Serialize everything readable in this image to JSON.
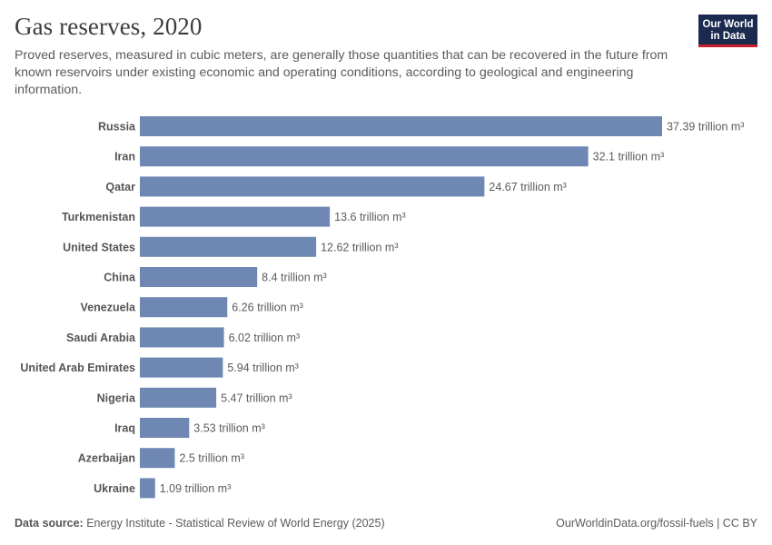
{
  "header": {
    "title": "Gas reserves, 2020",
    "subtitle": "Proved reserves, measured in cubic meters, are generally those quantities that can be recovered in the future from known reservoirs under existing economic and operating conditions, according to geological and engineering information.",
    "logo_line1": "Our World",
    "logo_line2": "in Data"
  },
  "colors": {
    "bar": "#6f88b3",
    "logo_bg": "#1b2a4f",
    "logo_accent": "#c81d2a"
  },
  "chart_data": {
    "type": "bar",
    "orientation": "horizontal",
    "title": "Gas reserves, 2020",
    "unit": "trillion m³",
    "categories": [
      "Russia",
      "Iran",
      "Qatar",
      "Turkmenistan",
      "United States",
      "China",
      "Venezuela",
      "Saudi Arabia",
      "United Arab Emirates",
      "Nigeria",
      "Iraq",
      "Azerbaijan",
      "Ukraine"
    ],
    "values": [
      37.39,
      32.1,
      24.67,
      13.6,
      12.62,
      8.4,
      6.26,
      6.02,
      5.94,
      5.47,
      3.53,
      2.5,
      1.09
    ],
    "value_labels": [
      "37.39 trillion m³",
      "32.1 trillion m³",
      "24.67 trillion m³",
      "13.6 trillion m³",
      "12.62 trillion m³",
      "8.4 trillion m³",
      "6.26 trillion m³",
      "6.02 trillion m³",
      "5.94 trillion m³",
      "5.47 trillion m³",
      "3.53 trillion m³",
      "2.5 trillion m³",
      "1.09 trillion m³"
    ],
    "xlim": [
      0,
      37.39
    ],
    "grid": false,
    "legend": "none"
  },
  "footer": {
    "source_label": "Data source:",
    "source_text": "Energy Institute - Statistical Review of World Energy (2025)",
    "right_text": "OurWorldinData.org/fossil-fuels | CC BY"
  }
}
